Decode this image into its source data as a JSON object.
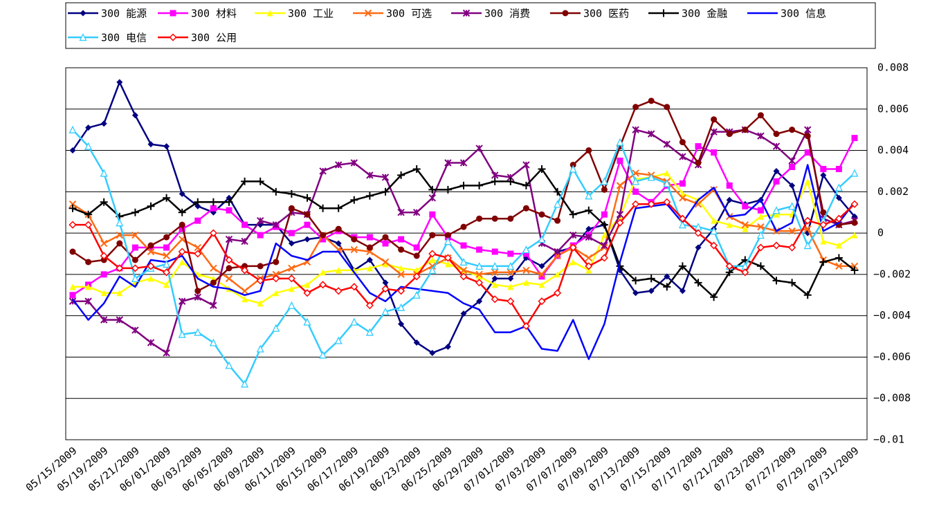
{
  "chart_data": {
    "type": "line",
    "categories": [
      "05/15/2009",
      null,
      "05/19/2009",
      null,
      "05/21/2009",
      null,
      "06/01/2009",
      null,
      "06/03/2009",
      null,
      "06/05/2009",
      null,
      "06/09/2009",
      null,
      "06/11/2009",
      null,
      "06/15/2009",
      null,
      "06/17/2009",
      null,
      "06/19/2009",
      null,
      "06/23/2009",
      null,
      "06/25/2009",
      null,
      "06/29/2009",
      null,
      "07/01/2009",
      null,
      "07/03/2009",
      null,
      "07/07/2009",
      null,
      "07/09/2009",
      null,
      "07/13/2009",
      null,
      "07/15/2009",
      null,
      "07/17/2009",
      null,
      "07/21/2009",
      null,
      "07/23/2009",
      null,
      "07/27/2009",
      null,
      "07/29/2009",
      null,
      "07/31/2009"
    ],
    "ylim": [
      -0.01,
      0.008
    ],
    "yticks": [
      0.008,
      0.006,
      0.004,
      0.002,
      0,
      {
        "value": -0.002,
        "label": "−0.002"
      },
      {
        "value": -0.004,
        "label": "−0.004"
      },
      {
        "value": -0.006,
        "label": "−0.006"
      },
      {
        "value": -0.008,
        "label": "−0.008"
      },
      {
        "value": -0.01,
        "label": "−0.01"
      }
    ],
    "grid": true,
    "legend": "top",
    "series": [
      {
        "name": "300 能源",
        "color": "#000080",
        "marker": "diamond",
        "values": [
          0.004,
          0.0051,
          0.0053,
          0.0073,
          0.0057,
          0.0043,
          0.0042,
          0.0019,
          0.0013,
          0.001,
          0.0017,
          0.0004,
          0.0004,
          0.0004,
          -0.0005,
          -0.0003,
          -0.0002,
          -0.0005,
          -0.0018,
          -0.0013,
          -0.0024,
          -0.0044,
          -0.0053,
          -0.0058,
          -0.0055,
          -0.0039,
          -0.0033,
          -0.0022,
          -0.0022,
          -0.0012,
          -0.0016,
          -0.0009,
          -0.0007,
          0.0002,
          0.0004,
          -0.0018,
          -0.0029,
          -0.0028,
          -0.0021,
          -0.0028,
          -0.0007,
          0.0002,
          0.0016,
          0.0014,
          0.0016,
          0.003,
          0.0023,
          0,
          0.0028,
          0.0017,
          0.0008
        ]
      },
      {
        "name": "300 材料",
        "color": "#ff00ff",
        "marker": "square",
        "values": [
          -0.003,
          -0.0025,
          -0.002,
          -0.0017,
          -0.0007,
          -0.0007,
          -0.0007,
          0.0002,
          0.0006,
          0.0012,
          0.0011,
          0.0004,
          -0.0001,
          0.0003,
          0,
          0.0004,
          -0.0003,
          0.0001,
          -0.0002,
          -0.0002,
          -0.0005,
          -0.0003,
          -0.0007,
          0.0009,
          -0.0002,
          -0.0006,
          -0.0008,
          -0.0009,
          -0.001,
          -0.001,
          -0.0021,
          -0.0011,
          -0.0006,
          -0.0001,
          0.0009,
          0.0035,
          0.002,
          0.0015,
          0.0023,
          0.0024,
          0.0042,
          0.0039,
          0.0023,
          0.0013,
          0.0011,
          0.0025,
          0.0032,
          0.0039,
          0.0031,
          0.0031,
          0.0046
        ]
      },
      {
        "name": "300 工业",
        "color": "#ffff00",
        "marker": "triangle",
        "values": [
          -0.0026,
          -0.0026,
          -0.0029,
          -0.0029,
          -0.0024,
          -0.0022,
          -0.0025,
          -0.0014,
          -0.002,
          -0.0022,
          -0.0027,
          -0.0032,
          -0.0034,
          -0.0029,
          -0.0027,
          -0.0025,
          -0.0019,
          -0.0018,
          -0.0018,
          -0.0017,
          -0.0015,
          -0.0017,
          -0.0018,
          -0.0013,
          -0.0015,
          -0.0018,
          -0.0021,
          -0.0025,
          -0.0026,
          -0.0024,
          -0.0025,
          -0.002,
          -0.0014,
          -0.0018,
          -0.0001,
          0.0008,
          0.0026,
          0.0027,
          0.0029,
          0.0019,
          0.0016,
          0.0006,
          0.0004,
          0.0002,
          0.0008,
          0.0009,
          0.0009,
          0.0025,
          -0.0004,
          -0.0006,
          -0.0001
        ]
      },
      {
        "name": "300 可选",
        "color": "#ff6a13",
        "marker": "x",
        "values": [
          0.0014,
          0.0009,
          -0.0005,
          -0.0001,
          -0.0001,
          -0.0009,
          -0.0011,
          -0.0003,
          -0.0007,
          -0.0017,
          -0.0022,
          -0.0028,
          -0.0022,
          -0.002,
          -0.0017,
          -0.0014,
          -0.0001,
          -0.0008,
          -0.0008,
          -0.0009,
          -0.0014,
          -0.002,
          -0.002,
          -0.0016,
          -0.0012,
          -0.0018,
          -0.002,
          -0.0019,
          -0.0019,
          -0.0018,
          -0.002,
          -0.0011,
          -0.0007,
          -0.0012,
          -0.0007,
          0.0023,
          0.0029,
          0.0028,
          0.0025,
          0.0017,
          0.0014,
          0.0021,
          0.0008,
          0.0004,
          0.0003,
          0.0001,
          0.0001,
          0.0002,
          -0.0013,
          -0.0016,
          -0.0016
        ]
      },
      {
        "name": "300 消费",
        "color": "#800080",
        "marker": "asterisk",
        "values": [
          -0.0033,
          -0.0033,
          -0.0042,
          -0.0042,
          -0.0047,
          -0.0053,
          -0.0058,
          -0.0033,
          -0.0031,
          -0.0035,
          -0.0003,
          -0.0004,
          0.0006,
          0.0004,
          0.001,
          0.0009,
          0.003,
          0.0033,
          0.0034,
          0.0028,
          0.0027,
          0.001,
          0.001,
          0.0017,
          0.0034,
          0.0034,
          0.0041,
          0.0028,
          0.0027,
          0.0033,
          -0.0005,
          -0.0009,
          -0.0001,
          -0.0002,
          -0.0006,
          0.0009,
          0.005,
          0.0048,
          0.0043,
          0.0037,
          0.0033,
          0.0049,
          0.0049,
          0.005,
          0.0047,
          0.0042,
          0.0035,
          0.005,
          0.0007,
          0.0004,
          0.0006
        ]
      },
      {
        "name": "300 医药",
        "color": "#800000",
        "marker": "circle",
        "values": [
          -0.0009,
          -0.0014,
          -0.0013,
          -0.0005,
          -0.0013,
          -0.0006,
          -0.0002,
          0.0004,
          -0.0028,
          -0.0024,
          -0.0017,
          -0.0016,
          -0.0016,
          -0.0014,
          0.0012,
          0.0009,
          -0.0001,
          0.0002,
          -0.0003,
          -0.0007,
          -0.0002,
          -0.0008,
          -0.0011,
          -0.0001,
          -0.0001,
          0.0003,
          0.0007,
          0.0007,
          0.0007,
          0.0012,
          0.0009,
          0.0006,
          0.0033,
          0.004,
          0.0021,
          0.0042,
          0.0061,
          0.0064,
          0.0061,
          0.0044,
          0.0034,
          0.0055,
          0.0048,
          0.005,
          0.0057,
          0.0048,
          0.005,
          0.0047,
          0.001,
          0.0004,
          0.0005
        ]
      },
      {
        "name": "300 金融",
        "color": "#000000",
        "marker": "plus",
        "values": [
          0.0012,
          0.0009,
          0.0015,
          0.0008,
          0.001,
          0.0013,
          0.0017,
          0.001,
          0.0015,
          0.0015,
          0.0015,
          0.0025,
          0.0025,
          0.002,
          0.0019,
          0.0017,
          0.0012,
          0.0012,
          0.0016,
          0.0018,
          0.002,
          0.0028,
          0.0031,
          0.0021,
          0.0021,
          0.0023,
          0.0023,
          0.0025,
          0.0025,
          0.0023,
          0.0031,
          0.002,
          0.0009,
          0.0011,
          0.0004,
          -0.0016,
          -0.0023,
          -0.0022,
          -0.0026,
          -0.0016,
          -0.0024,
          -0.0031,
          -0.0019,
          -0.0013,
          -0.0016,
          -0.0023,
          -0.0024,
          -0.003,
          -0.0014,
          -0.0012,
          -0.0018
        ]
      },
      {
        "name": "300 信息",
        "color": "#0000ff",
        "marker": "none",
        "values": [
          -0.0032,
          -0.0042,
          -0.0034,
          -0.0021,
          -0.0026,
          -0.0013,
          -0.0014,
          -0.0011,
          -0.0022,
          -0.0026,
          -0.0027,
          -0.003,
          -0.0028,
          -0.0005,
          -0.0011,
          -0.0013,
          -0.0009,
          -0.0009,
          -0.0019,
          -0.0029,
          -0.0033,
          -0.0026,
          -0.0027,
          -0.0028,
          -0.0029,
          -0.0034,
          -0.0037,
          -0.0048,
          -0.0048,
          -0.0045,
          -0.0056,
          -0.0057,
          -0.0042,
          -0.0061,
          -0.0044,
          -0.0014,
          0.0012,
          0.0013,
          0.0014,
          0.0005,
          0.0016,
          0.0022,
          0.0008,
          0.0009,
          0.0016,
          0.0001,
          0.0005,
          0.0033,
          0.0001,
          0.0005,
          0.0015
        ]
      },
      {
        "name": "300 电信",
        "color": "#33ccff",
        "marker": "triangle-open",
        "values": [
          0.005,
          0.0042,
          0.0029,
          0.0005,
          -0.0022,
          -0.0017,
          -0.0015,
          -0.0049,
          -0.0048,
          -0.0053,
          -0.0064,
          -0.0073,
          -0.0056,
          -0.0046,
          -0.0035,
          -0.0043,
          -0.0059,
          -0.0052,
          -0.0043,
          -0.0048,
          -0.0038,
          -0.0036,
          -0.003,
          -0.0018,
          -0.0004,
          -0.0014,
          -0.0016,
          -0.0016,
          -0.0016,
          -0.0008,
          -0.0003,
          0.0014,
          0.0031,
          0.0018,
          0.0025,
          0.0044,
          0.0025,
          0.0027,
          0.0024,
          0.0004,
          0.0003,
          0.0001,
          -0.0016,
          -0.0016,
          -0.0001,
          0.0011,
          0.0013,
          -0.0006,
          0.0006,
          0.0022,
          0.0029
        ]
      },
      {
        "name": "300 公用",
        "color": "#ff0000",
        "marker": "diamond-open",
        "values": [
          0.0004,
          0.0004,
          -0.0011,
          -0.0017,
          -0.0017,
          -0.0016,
          -0.0019,
          -0.0009,
          -0.001,
          0,
          -0.0013,
          -0.0018,
          -0.0023,
          -0.0022,
          -0.0022,
          -0.0029,
          -0.0025,
          -0.0028,
          -0.0026,
          -0.0035,
          -0.0027,
          -0.0028,
          -0.0021,
          -0.001,
          -0.0012,
          -0.0021,
          -0.0024,
          -0.0032,
          -0.0033,
          -0.0045,
          -0.0033,
          -0.0029,
          -0.0007,
          -0.0016,
          -0.0012,
          0.0005,
          0.0014,
          0.0014,
          0.0015,
          0.0007,
          0,
          -0.0006,
          -0.0016,
          -0.0019,
          -0.0007,
          -0.0006,
          -0.0007,
          0.0006,
          0.0004,
          0.0007,
          0.0014
        ]
      }
    ]
  }
}
